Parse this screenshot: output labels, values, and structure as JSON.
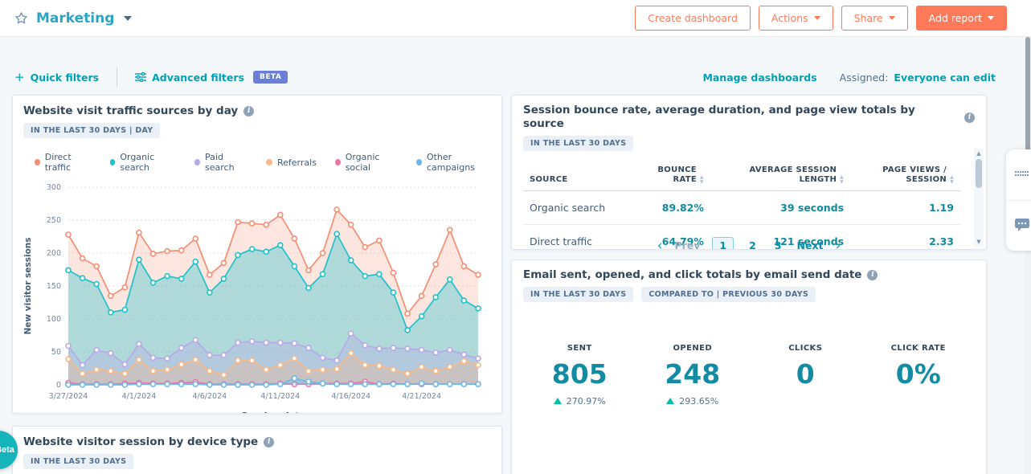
{
  "header": {
    "title": "Marketing",
    "buttons": [
      {
        "label": "Create dashboard",
        "style": "outline",
        "caret": false
      },
      {
        "label": "Actions",
        "style": "outline",
        "caret": true
      },
      {
        "label": "Share",
        "style": "outline",
        "caret": true
      },
      {
        "label": "Add report",
        "style": "solid",
        "caret": true
      }
    ]
  },
  "filterbar": {
    "quick_filters": "Quick filters",
    "advanced_filters": "Advanced filters",
    "beta": "BETA",
    "manage_dashboards": "Manage dashboards",
    "assigned_label": "Assigned:",
    "assigned_value": "Everyone can edit"
  },
  "traffic_card": {
    "title": "Website visit traffic sources by day",
    "badge": "IN THE LAST 30 DAYS | DAY",
    "chart_data": {
      "type": "area",
      "title": "Website visit traffic sources by day",
      "xlabel": "Session date",
      "ylabel": "New visitor sessions",
      "ylim": [
        0,
        300
      ],
      "yticks": [
        0,
        50,
        100,
        150,
        200,
        250,
        300
      ],
      "grid": true,
      "legend_position": "top",
      "x": [
        "3/27/2024",
        "3/28/2024",
        "3/29/2024",
        "3/30/2024",
        "3/31/2024",
        "4/1/2024",
        "4/2/2024",
        "4/3/2024",
        "4/4/2024",
        "4/5/2024",
        "4/6/2024",
        "4/7/2024",
        "4/8/2024",
        "4/9/2024",
        "4/10/2024",
        "4/11/2024",
        "4/12/2024",
        "4/13/2024",
        "4/14/2024",
        "4/15/2024",
        "4/16/2024",
        "4/17/2024",
        "4/18/2024",
        "4/19/2024",
        "4/20/2024",
        "4/21/2024",
        "4/22/2024",
        "4/23/2024",
        "4/24/2024",
        "4/25/2024"
      ],
      "tick_indices": [
        0,
        5,
        10,
        15,
        20,
        25
      ],
      "series": [
        {
          "name": "Direct traffic",
          "color": "#f58e74",
          "fill": "rgba(245,142,116,0.22)",
          "values": [
            228,
            192,
            180,
            135,
            148,
            231,
            199,
            203,
            204,
            222,
            167,
            185,
            247,
            245,
            243,
            258,
            222,
            174,
            200,
            266,
            243,
            209,
            219,
            170,
            108,
            135,
            183,
            235,
            180,
            167
          ]
        },
        {
          "name": "Organic search",
          "color": "#1fc1ca",
          "fill": "rgba(31,193,202,0.35)",
          "values": [
            174,
            162,
            153,
            110,
            114,
            190,
            155,
            165,
            161,
            187,
            140,
            161,
            197,
            206,
            202,
            212,
            180,
            147,
            168,
            229,
            189,
            165,
            168,
            140,
            83,
            104,
            133,
            160,
            128,
            116
          ]
        },
        {
          "name": "Paid search",
          "color": "#b7a9e8",
          "fill": "rgba(183,169,232,0.32)",
          "values": [
            59,
            30,
            53,
            48,
            31,
            62,
            41,
            40,
            56,
            68,
            45,
            45,
            64,
            66,
            64,
            64,
            63,
            56,
            41,
            37,
            78,
            60,
            55,
            56,
            55,
            53,
            49,
            53,
            46,
            40
          ]
        },
        {
          "name": "Referrals",
          "color": "#f8b988",
          "fill": "rgba(248,185,136,0.32)",
          "values": [
            39,
            17,
            23,
            21,
            17,
            38,
            21,
            23,
            31,
            38,
            21,
            15,
            37,
            37,
            23,
            30,
            40,
            21,
            23,
            24,
            48,
            30,
            29,
            23,
            17,
            27,
            21,
            27,
            36,
            30
          ]
        },
        {
          "name": "Organic social",
          "color": "#f073a2",
          "fill": "rgba(240,115,162,0.25)",
          "values": [
            3,
            1,
            1,
            1,
            2,
            3,
            2,
            2,
            3,
            4,
            1,
            1,
            1,
            1,
            1,
            2,
            1,
            1,
            2,
            2,
            2,
            5,
            1,
            2,
            1,
            1,
            1,
            1,
            1,
            1
          ]
        },
        {
          "name": "Other campaigns",
          "color": "#6fb9e8",
          "fill": "rgba(111,185,232,0.4)",
          "values": [
            0,
            0,
            0,
            0,
            0,
            1,
            1,
            1,
            1,
            1,
            0,
            0,
            0,
            0,
            0,
            1,
            10,
            5,
            2,
            1,
            1,
            1,
            1,
            1,
            1,
            2,
            1,
            1,
            1,
            1
          ]
        }
      ]
    }
  },
  "sources_card": {
    "title": "Session bounce rate, average duration, and page view totals by source",
    "badge": "IN THE LAST 30 DAYS",
    "table": {
      "columns": [
        {
          "label": "SOURCE",
          "align": "left",
          "sortable": false,
          "label_width": 70
        },
        {
          "label": "BOUNCE RATE",
          "align": "right",
          "sortable": true,
          "label_width": 52
        },
        {
          "label": "AVERAGE SESSION LENGTH",
          "align": "right",
          "sortable": true,
          "label_width": 115
        },
        {
          "label": "PAGE VIEWS / SESSION",
          "align": "right",
          "sortable": true,
          "label_width": 85
        }
      ],
      "rows": [
        [
          "Organic search",
          "89.82%",
          "39 seconds",
          "1.19"
        ],
        [
          "Direct traffic",
          "64.79%",
          "121 seconds",
          "2.33"
        ]
      ]
    },
    "pagination": {
      "prev": "Prev",
      "pages": [
        "1",
        "2",
        "3"
      ],
      "current": "1",
      "next": "Next"
    }
  },
  "email_card": {
    "title": "Email sent, opened, and click totals by email send date",
    "badges": [
      "IN THE LAST 30 DAYS",
      "COMPARED TO | PREVIOUS 30 DAYS"
    ],
    "metrics": [
      {
        "label": "SENT",
        "value": "805",
        "delta": "270.97%"
      },
      {
        "label": "OPENED",
        "value": "248",
        "delta": "293.65%"
      },
      {
        "label": "CLICKS",
        "value": "0",
        "delta": null
      },
      {
        "label": "CLICK RATE",
        "value": "0%",
        "delta": null
      }
    ],
    "delta_color": "#00bda5"
  },
  "device_card": {
    "title": "Website visitor session by device type",
    "badge": "IN THE LAST 30 DAYS"
  },
  "side_panel": {
    "icons": [
      "grid-dots-icon",
      "comments-icon"
    ]
  },
  "beta_fab": {
    "label": "Beta"
  },
  "brand": {
    "accent_orange": "#ff7a59",
    "link_teal": "#00a0b6",
    "value_teal": "#0f8ba0"
  }
}
